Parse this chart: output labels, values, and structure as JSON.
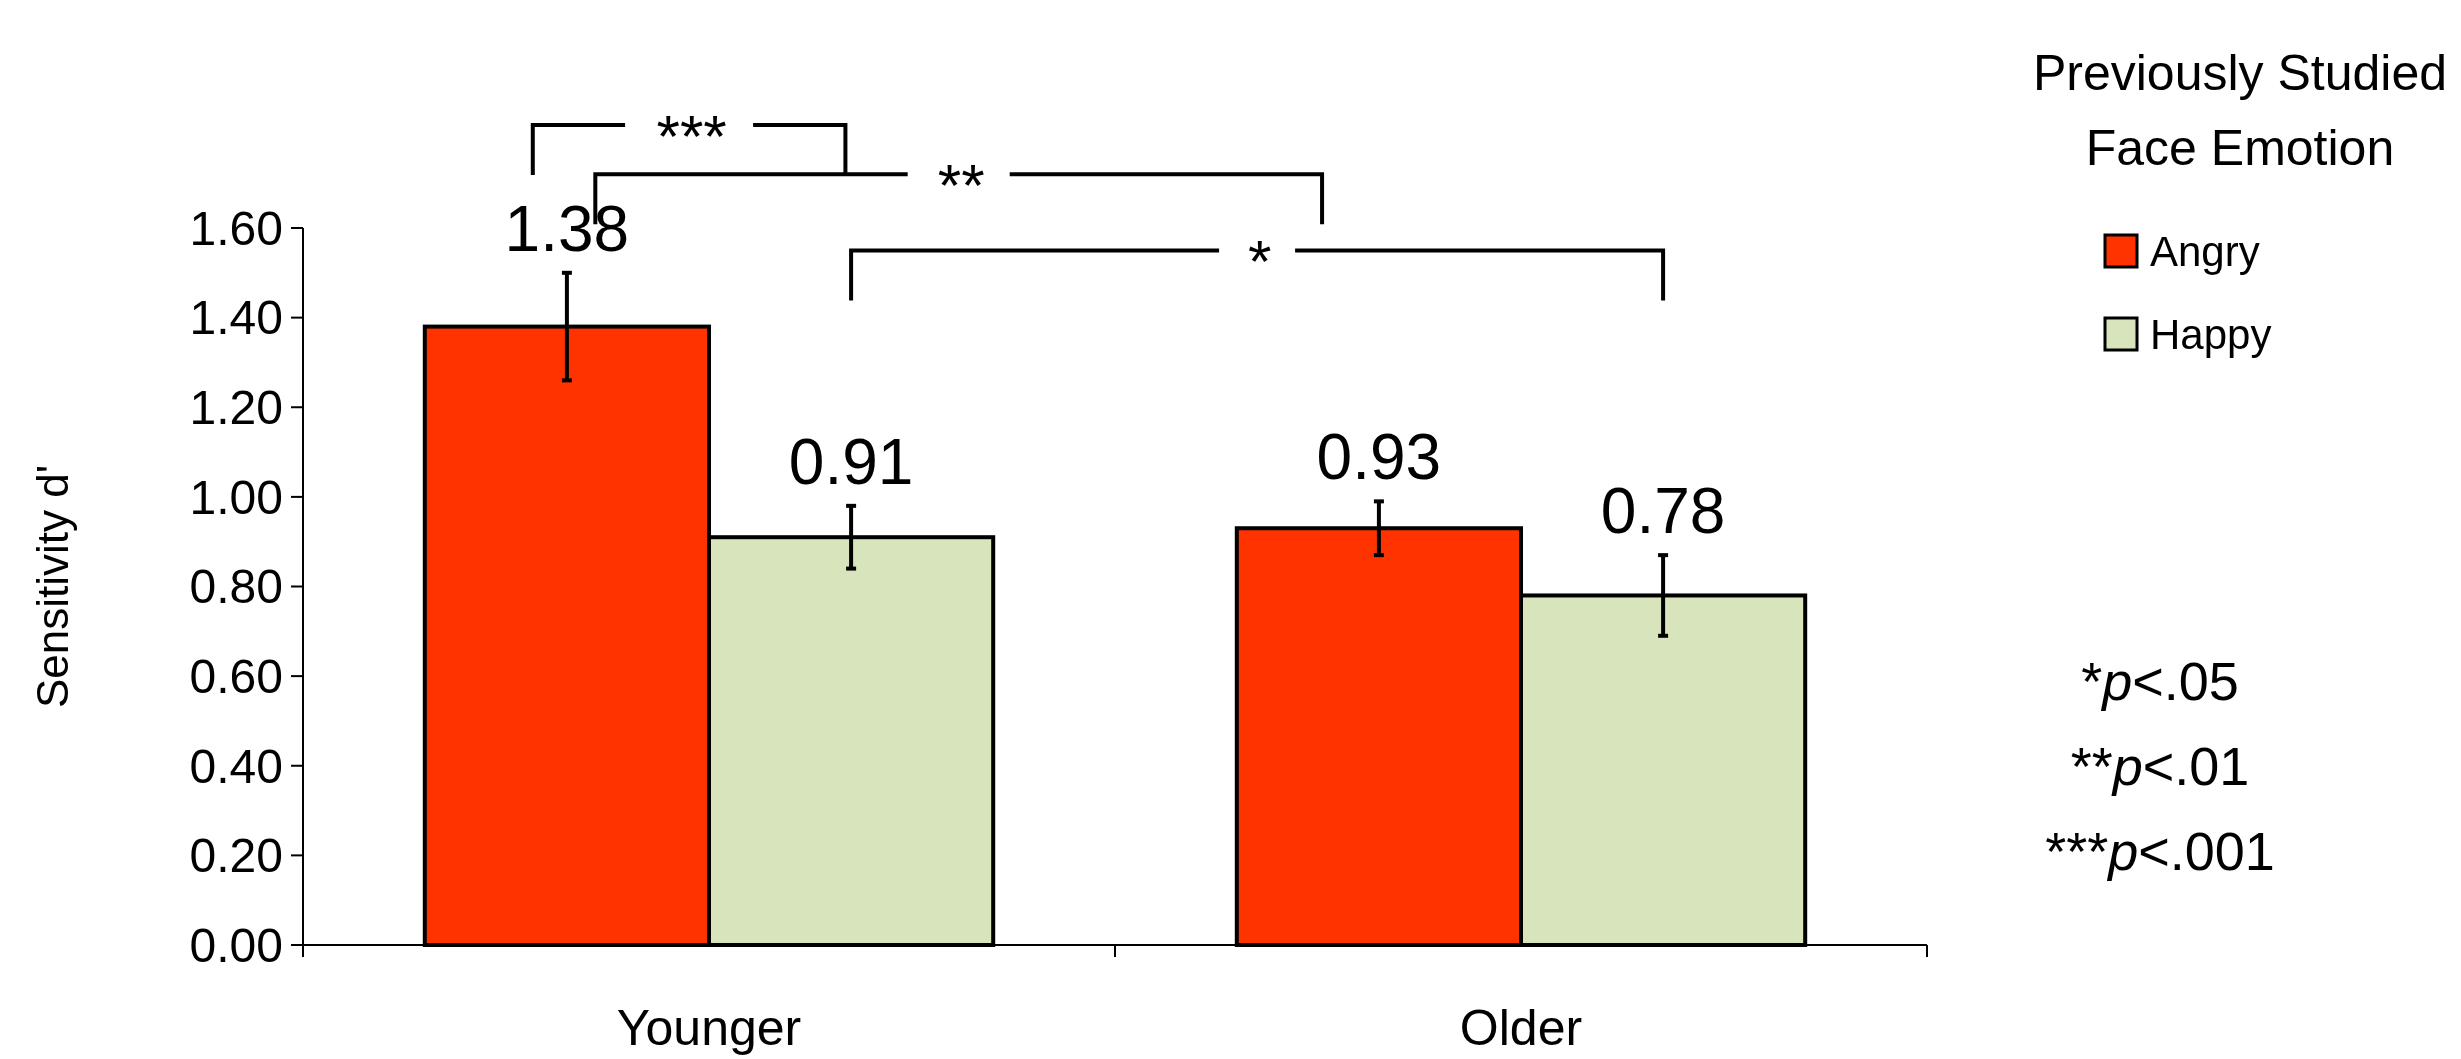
{
  "chart_data": {
    "type": "bar",
    "ylabel": "Sensitivity d'",
    "legend_title": "Previously Studied Face Emotion",
    "legend": "top right",
    "categories": [
      "Younger",
      "Older"
    ],
    "series": [
      {
        "name": "Angry",
        "color": "#ff3300",
        "values": [
          1.38,
          0.93
        ],
        "errors": [
          0.12,
          0.06
        ]
      },
      {
        "name": "Happy",
        "color": "#d8e4bc",
        "values": [
          0.91,
          0.78
        ],
        "errors": [
          0.07,
          0.09
        ]
      }
    ],
    "ylim": [
      0,
      1.6
    ],
    "yticks": [
      {
        "value": 0,
        "label": "0.00"
      },
      {
        "value": 0.2,
        "label": "0.20"
      },
      {
        "value": 0.4,
        "label": "0.40"
      },
      {
        "value": 0.6,
        "label": "0.60"
      },
      {
        "value": 0.8,
        "label": "0.80"
      },
      {
        "value": 1,
        "label": "1.00"
      },
      {
        "value": 1.2,
        "label": "1.20"
      },
      {
        "value": 1.4,
        "label": "1.40"
      },
      {
        "value": 1.6,
        "label": "1.60"
      }
    ],
    "grid": false,
    "data_labels": true,
    "annotations": [
      "***",
      "**",
      "*",
      "*p<.05",
      "**p<.01",
      "***p<.001"
    ]
  }
}
